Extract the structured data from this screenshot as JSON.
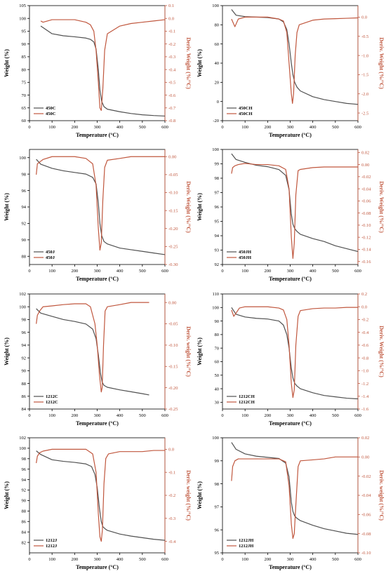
{
  "colors": {
    "weight": "#505050",
    "deriv": "#c0573e",
    "axis": "#000000",
    "right_axis": "#c0573e"
  },
  "chart_data": [
    {
      "type": "line",
      "title": "",
      "xlabel": "Temperature (°C)",
      "ylabel": "Weight (%)",
      "y2label": "Deriv. Weight (%/°C)",
      "xlim": [
        0,
        600
      ],
      "xticks": [
        0,
        100,
        200,
        300,
        400,
        500,
        600
      ],
      "ylim": [
        60,
        105
      ],
      "yticks": [
        60,
        65,
        70,
        75,
        80,
        85,
        90,
        95,
        100,
        105
      ],
      "y2lim": [
        -0.8,
        0.1
      ],
      "y2ticks": [
        -0.8,
        -0.7,
        -0.6,
        -0.5,
        -0.4,
        -0.3,
        -0.2,
        -0.1,
        0.0,
        0.1
      ],
      "legend_position": "bottom-left",
      "series": [
        {
          "name": "450C",
          "axis": "left",
          "x": [
            50,
            100,
            150,
            200,
            250,
            270,
            285,
            295,
            305,
            312,
            320,
            330,
            345,
            400,
            450,
            500,
            550,
            600
          ],
          "y": [
            97,
            94,
            93.2,
            92.8,
            92.3,
            91.8,
            90.8,
            88,
            80,
            72,
            67.5,
            65.5,
            64.5,
            63.5,
            62.8,
            62.3,
            62,
            61.8
          ]
        },
        {
          "name": "450C",
          "axis": "right",
          "x": [
            50,
            60,
            100,
            150,
            200,
            250,
            270,
            285,
            295,
            305,
            312,
            318,
            325,
            333,
            345,
            400,
            450,
            500,
            550,
            600
          ],
          "y": [
            -0.02,
            -0.03,
            -0.01,
            -0.01,
            -0.01,
            -0.03,
            -0.05,
            -0.1,
            -0.25,
            -0.5,
            -0.7,
            -0.72,
            -0.55,
            -0.25,
            -0.12,
            -0.06,
            -0.04,
            -0.03,
            -0.02,
            -0.01
          ]
        }
      ]
    },
    {
      "type": "line",
      "title": "",
      "xlabel": "Temperature (°C)",
      "ylabel": "Weight (%)",
      "y2label": "Deriv. Weight (%/°C)",
      "xlim": [
        0,
        600
      ],
      "xticks": [
        0,
        100,
        200,
        300,
        400,
        500,
        600
      ],
      "ylim": [
        -20,
        100
      ],
      "yticks": [
        -20,
        0,
        20,
        40,
        60,
        80,
        100
      ],
      "y2lim": [
        -2.7,
        0.3
      ],
      "y2ticks": [
        -2.5,
        -2.0,
        -1.5,
        -1.0,
        -0.5,
        0.0
      ],
      "legend_position": "bottom-left",
      "series": [
        {
          "name": "450CH",
          "axis": "left",
          "x": [
            40,
            60,
            100,
            150,
            200,
            250,
            270,
            285,
            295,
            305,
            312,
            320,
            330,
            345,
            400,
            450,
            500,
            550,
            600
          ],
          "y": [
            96,
            90,
            88.5,
            88,
            87.5,
            86,
            83,
            75,
            60,
            40,
            28,
            20,
            15,
            11,
            5,
            2,
            0,
            -2,
            -3
          ]
        },
        {
          "name": "450CH",
          "axis": "right",
          "x": [
            40,
            55,
            70,
            100,
            150,
            200,
            250,
            270,
            285,
            295,
            305,
            310,
            315,
            322,
            330,
            340,
            400,
            450,
            500,
            550,
            600
          ],
          "y": [
            -0.05,
            -0.25,
            -0.05,
            0.0,
            0.0,
            0.0,
            -0.05,
            -0.1,
            -0.4,
            -1.2,
            -2.0,
            -2.25,
            -2.0,
            -1.0,
            -0.4,
            -0.2,
            -0.08,
            -0.05,
            -0.04,
            -0.03,
            -0.02
          ]
        }
      ]
    },
    {
      "type": "line",
      "title": "",
      "xlabel": "Temperature (°C)",
      "ylabel": "Weight (%)",
      "y2label": "Deriv. Weight (%/°C)",
      "xlim": [
        0,
        600
      ],
      "xticks": [
        0,
        100,
        200,
        300,
        400,
        500,
        600
      ],
      "ylim": [
        87,
        101
      ],
      "yticks": [
        88,
        90,
        92,
        94,
        96,
        98,
        100
      ],
      "y2lim": [
        -0.3,
        0.02
      ],
      "y2ticks": [
        -0.3,
        -0.25,
        -0.2,
        -0.15,
        -0.1,
        -0.05,
        0.0
      ],
      "legend_position": "bottom-left",
      "series": [
        {
          "name": "450J",
          "axis": "left",
          "x": [
            30,
            50,
            100,
            150,
            200,
            250,
            280,
            295,
            305,
            312,
            320,
            330,
            345,
            400,
            450,
            500,
            550,
            600
          ],
          "y": [
            99.8,
            99.2,
            98.7,
            98.4,
            98.2,
            98,
            97.6,
            96.8,
            94.5,
            92,
            90.5,
            89.8,
            89.5,
            89,
            88.8,
            88.6,
            88.4,
            88.2
          ]
        },
        {
          "name": "450J",
          "axis": "right",
          "x": [
            30,
            35,
            45,
            60,
            100,
            150,
            200,
            250,
            280,
            295,
            305,
            312,
            318,
            325,
            333,
            345,
            400,
            450,
            500,
            550,
            600
          ],
          "y": [
            -0.05,
            -0.02,
            -0.015,
            -0.008,
            0.0,
            0.0,
            0.0,
            -0.005,
            -0.02,
            -0.08,
            -0.2,
            -0.26,
            -0.24,
            -0.12,
            -0.03,
            -0.01,
            -0.005,
            0.0,
            0.0,
            0.0,
            0.0
          ]
        }
      ]
    },
    {
      "type": "line",
      "title": "",
      "xlabel": "Temperature (°C)",
      "ylabel": "Weight (%)",
      "y2label": "Deriv. Weight (%/°C)",
      "xlim": [
        0,
        600
      ],
      "xticks": [
        0,
        100,
        200,
        300,
        400,
        500,
        600
      ],
      "ylim": [
        92,
        100
      ],
      "yticks": [
        92,
        93,
        94,
        95,
        96,
        97,
        98,
        99,
        100
      ],
      "y2lim": [
        -0.165,
        0.025
      ],
      "y2ticks": [
        -0.16,
        -0.14,
        -0.12,
        -0.1,
        -0.08,
        -0.06,
        -0.04,
        -0.02,
        0.0,
        0.02
      ],
      "legend_position": "bottom-left",
      "series": [
        {
          "name": "450JH",
          "axis": "left",
          "x": [
            40,
            60,
            100,
            150,
            200,
            250,
            280,
            295,
            305,
            312,
            320,
            330,
            345,
            400,
            450,
            500,
            550,
            600
          ],
          "y": [
            99.7,
            99.3,
            99.1,
            98.9,
            98.8,
            98.6,
            98.2,
            97.2,
            95.5,
            94.8,
            94.5,
            94.3,
            94.1,
            93.8,
            93.6,
            93.3,
            93.1,
            92.9
          ]
        },
        {
          "name": "450JH",
          "axis": "right",
          "x": [
            40,
            45,
            55,
            70,
            100,
            150,
            200,
            250,
            280,
            295,
            305,
            312,
            318,
            325,
            335,
            345,
            400,
            450,
            500,
            550,
            600
          ],
          "y": [
            -0.015,
            -0.005,
            -0.002,
            0.0,
            0.002,
            0.0,
            0.0,
            -0.002,
            -0.008,
            -0.04,
            -0.12,
            -0.155,
            -0.13,
            -0.05,
            -0.01,
            -0.008,
            -0.005,
            -0.004,
            -0.004,
            -0.004,
            -0.004
          ]
        }
      ]
    },
    {
      "type": "line",
      "title": "",
      "xlabel": "Temperature (°C)",
      "ylabel": "Weight (%)",
      "y2label": "Deriv. weight (%/°C)",
      "xlim": [
        0,
        600
      ],
      "xticks": [
        0,
        100,
        200,
        300,
        400,
        500,
        600
      ],
      "ylim": [
        84,
        102
      ],
      "yticks": [
        84,
        86,
        88,
        90,
        92,
        94,
        96,
        98,
        100,
        102
      ],
      "y2lim": [
        -0.25,
        0.02
      ],
      "y2ticks": [
        -0.25,
        -0.2,
        -0.15,
        -0.1,
        -0.05,
        0.0
      ],
      "legend_position": "bottom-left",
      "series": [
        {
          "name": "1212C",
          "axis": "left",
          "x": [
            30,
            50,
            100,
            150,
            200,
            250,
            280,
            295,
            305,
            315,
            322,
            330,
            345,
            400,
            450,
            500,
            530
          ],
          "y": [
            99.7,
            99,
            98.5,
            98,
            97.7,
            97.3,
            96.5,
            95,
            92.5,
            89.5,
            88.2,
            87.7,
            87.4,
            87,
            86.7,
            86.4,
            86.2
          ]
        },
        {
          "name": "1212C",
          "axis": "right",
          "x": [
            30,
            35,
            45,
            60,
            100,
            150,
            200,
            250,
            270,
            290,
            300,
            310,
            318,
            322,
            328,
            335,
            345,
            400,
            450,
            500,
            530
          ],
          "y": [
            -0.05,
            -0.03,
            -0.02,
            -0.01,
            -0.008,
            -0.005,
            -0.003,
            -0.003,
            -0.01,
            -0.05,
            -0.1,
            -0.17,
            -0.21,
            -0.2,
            -0.1,
            -0.02,
            -0.01,
            -0.005,
            0.0,
            0.0,
            0.0
          ]
        }
      ]
    },
    {
      "type": "line",
      "title": "",
      "xlabel": "Temperature (°C)",
      "ylabel": "Weight (%)",
      "y2label": "Deriv. Weight (%/°C)",
      "xlim": [
        0,
        600
      ],
      "xticks": [
        0,
        100,
        200,
        300,
        400,
        500,
        600
      ],
      "ylim": [
        25,
        110
      ],
      "yticks": [
        30,
        40,
        50,
        60,
        70,
        80,
        90,
        100,
        110
      ],
      "y2lim": [
        -1.6,
        0.2
      ],
      "y2ticks": [
        -1.6,
        -1.4,
        -1.2,
        -1.0,
        -0.8,
        -0.6,
        -0.4,
        -0.2,
        0.0,
        0.2
      ],
      "legend_position": "bottom-left",
      "series": [
        {
          "name": "1212CH",
          "axis": "left",
          "x": [
            40,
            60,
            100,
            150,
            200,
            250,
            270,
            285,
            295,
            305,
            312,
            320,
            330,
            345,
            400,
            450,
            500,
            550,
            600
          ],
          "y": [
            100,
            95,
            93,
            92,
            91.5,
            90,
            87,
            80,
            70,
            55,
            48,
            44,
            42,
            40,
            37,
            35,
            34,
            33,
            32.5
          ]
        },
        {
          "name": "1212CH",
          "axis": "right",
          "x": [
            40,
            50,
            60,
            75,
            100,
            150,
            200,
            250,
            270,
            285,
            295,
            305,
            312,
            318,
            325,
            335,
            345,
            400,
            450,
            500,
            550,
            600
          ],
          "y": [
            -0.05,
            -0.15,
            -0.1,
            -0.02,
            0.0,
            0.0,
            0.0,
            -0.02,
            -0.05,
            -0.2,
            -0.6,
            -1.2,
            -1.42,
            -1.3,
            -0.6,
            -0.15,
            -0.06,
            -0.03,
            -0.02,
            -0.02,
            -0.01,
            -0.01
          ]
        }
      ]
    },
    {
      "type": "line",
      "title": "",
      "xlabel": "Temperature (°C)",
      "ylabel": "Weight (%)",
      "y2label": "Deriv. weight (%/°C)",
      "xlim": [
        0,
        600
      ],
      "xticks": [
        0,
        100,
        200,
        300,
        400,
        500,
        600
      ],
      "ylim": [
        80,
        102
      ],
      "yticks": [
        82,
        84,
        86,
        88,
        90,
        92,
        94,
        96,
        98,
        100,
        102
      ],
      "y2lim": [
        -0.45,
        0.05
      ],
      "y2ticks": [
        -0.4,
        -0.3,
        -0.2,
        -0.1,
        0.0
      ],
      "legend_position": "bottom-left",
      "series": [
        {
          "name": "1212J",
          "axis": "left",
          "x": [
            30,
            50,
            100,
            150,
            200,
            250,
            275,
            290,
            300,
            310,
            318,
            325,
            335,
            345,
            400,
            450,
            500,
            550,
            600
          ],
          "y": [
            99.5,
            98.8,
            97.8,
            97.5,
            97.3,
            97,
            96.5,
            95,
            92.5,
            88.5,
            86,
            85,
            84.6,
            84.3,
            83.6,
            83.2,
            82.9,
            82.6,
            82.4
          ]
        },
        {
          "name": "1212J",
          "axis": "right",
          "x": [
            30,
            35,
            45,
            60,
            100,
            150,
            200,
            250,
            280,
            295,
            305,
            312,
            318,
            323,
            330,
            338,
            350,
            400,
            450,
            500,
            550,
            600
          ],
          "y": [
            -0.06,
            -0.03,
            -0.015,
            -0.008,
            0.0,
            0.0,
            0.0,
            0.0,
            -0.02,
            -0.1,
            -0.28,
            -0.38,
            -0.4,
            -0.35,
            -0.15,
            -0.04,
            -0.02,
            -0.01,
            -0.01,
            -0.01,
            -0.005,
            -0.005
          ]
        }
      ]
    },
    {
      "type": "line",
      "title": "",
      "xlabel": "Temperature (°C)",
      "ylabel": "Weight (%)",
      "y2label": "Deriv. weight (%/°C)",
      "xlim": [
        0,
        600
      ],
      "xticks": [
        0,
        100,
        200,
        300,
        400,
        500,
        600
      ],
      "ylim": [
        95,
        100
      ],
      "yticks": [
        95,
        96,
        97,
        98,
        99,
        100
      ],
      "y2lim": [
        -0.1,
        0.02
      ],
      "y2ticks": [
        -0.1,
        -0.08,
        -0.06,
        -0.04,
        -0.02,
        0.0,
        0.02
      ],
      "legend_position": "bottom-left",
      "series": [
        {
          "name": "1212JH",
          "axis": "left",
          "x": [
            40,
            60,
            100,
            150,
            200,
            250,
            280,
            295,
            305,
            312,
            320,
            330,
            345,
            400,
            450,
            500,
            550,
            600
          ],
          "y": [
            99.8,
            99.5,
            99.3,
            99.2,
            99.15,
            99.1,
            98.9,
            98.3,
            97.2,
            96.8,
            96.6,
            96.5,
            96.4,
            96.2,
            96.05,
            95.95,
            95.85,
            95.8
          ]
        },
        {
          "name": "1212JH",
          "axis": "right",
          "x": [
            40,
            45,
            55,
            70,
            100,
            150,
            200,
            250,
            280,
            295,
            305,
            312,
            318,
            325,
            335,
            345,
            400,
            450,
            500,
            550,
            600
          ],
          "y": [
            -0.025,
            -0.01,
            -0.004,
            -0.002,
            -0.002,
            -0.002,
            -0.002,
            -0.002,
            -0.005,
            -0.03,
            -0.07,
            -0.085,
            -0.08,
            -0.05,
            -0.01,
            -0.004,
            -0.003,
            -0.002,
            0.0,
            0.0,
            0.0
          ]
        }
      ]
    }
  ]
}
